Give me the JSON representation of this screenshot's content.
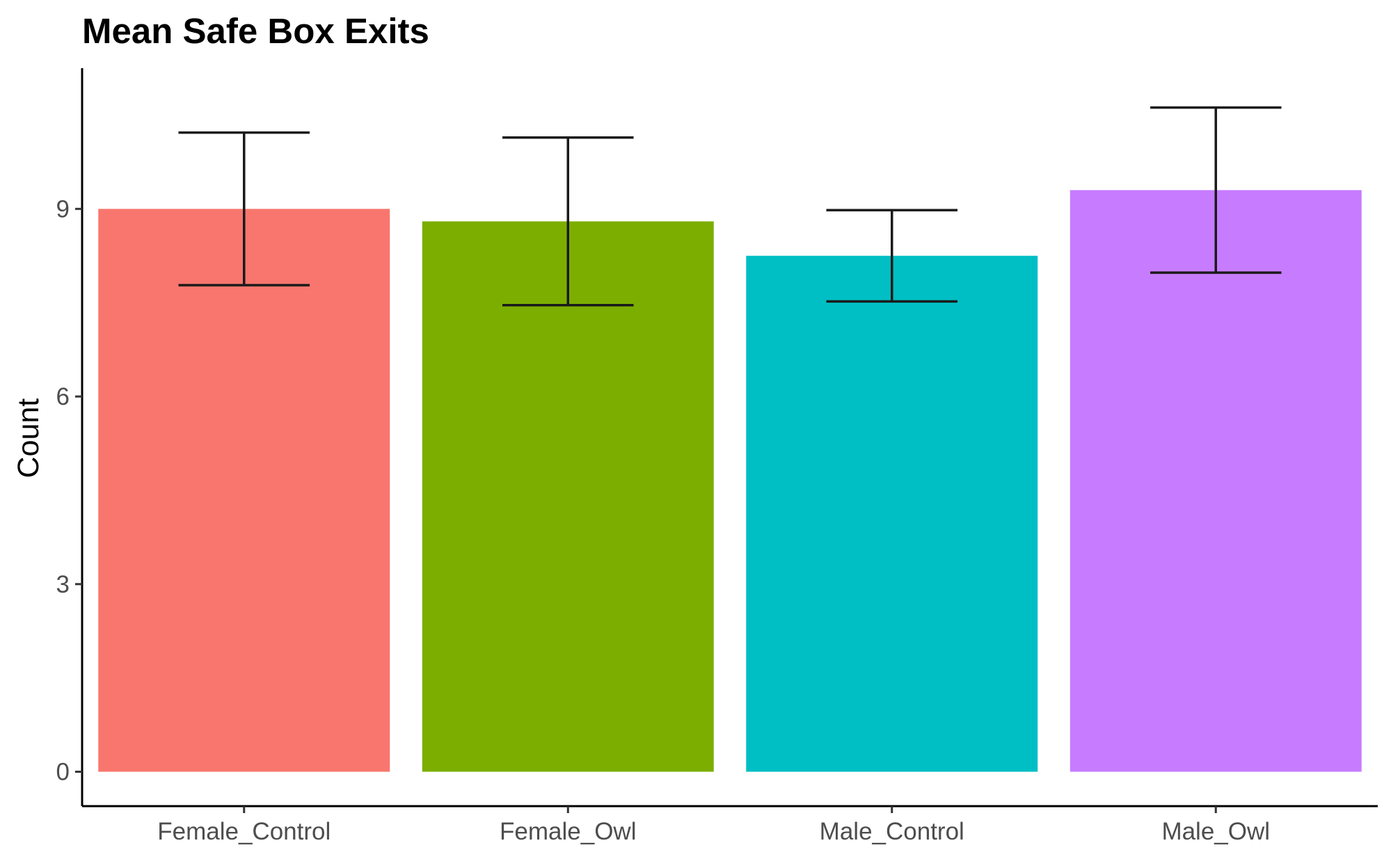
{
  "chart_data": {
    "type": "bar",
    "title": "Mean Safe Box Exits",
    "xlabel": "",
    "ylabel": "Count",
    "categories": [
      "Female_Control",
      "Female_Owl",
      "Male_Control",
      "Male_Owl"
    ],
    "values": [
      9.0,
      8.8,
      8.25,
      9.3
    ],
    "error_upper": [
      10.22,
      10.14,
      8.98,
      10.62
    ],
    "error_lower": [
      7.78,
      7.46,
      7.52,
      7.98
    ],
    "colors": [
      "#F8766D",
      "#7CAE00",
      "#00BFC4",
      "#C77CFF"
    ],
    "ylim": [
      -0.55,
      11.25
    ],
    "yticks": [
      0,
      3,
      6,
      9
    ],
    "ytick_labels": [
      "0",
      "3",
      "6",
      "9"
    ],
    "grid": false,
    "legend": "none"
  }
}
